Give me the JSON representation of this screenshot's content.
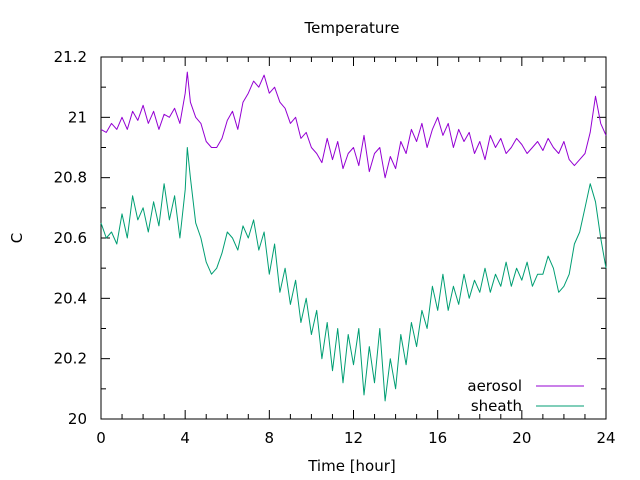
{
  "chart_data": {
    "type": "line",
    "title": "Temperature",
    "xlabel": "Time [hour]",
    "ylabel": "C",
    "xlim": [
      0,
      24
    ],
    "ylim": [
      20,
      21.2
    ],
    "xticks": [
      0,
      4,
      8,
      12,
      16,
      20,
      24
    ],
    "xtick_labels": [
      "0",
      "4",
      "8",
      "12",
      "16",
      "20",
      "24"
    ],
    "yticks": [
      20,
      20.2,
      20.4,
      20.6,
      20.8,
      21,
      21.2
    ],
    "ytick_labels": [
      "20",
      "20.2",
      "20.4",
      "20.6",
      "20.8",
      "21",
      "21.2"
    ],
    "grid": false,
    "legend_position": "bottom-right",
    "series": [
      {
        "name": "aerosol",
        "color": "#9400d3",
        "x": [
          0,
          0.25,
          0.5,
          0.75,
          1,
          1.25,
          1.5,
          1.75,
          2,
          2.25,
          2.5,
          2.75,
          3,
          3.25,
          3.5,
          3.75,
          4,
          4.1,
          4.25,
          4.5,
          4.75,
          5,
          5.25,
          5.5,
          5.75,
          6,
          6.25,
          6.5,
          6.75,
          7,
          7.25,
          7.5,
          7.75,
          8,
          8.25,
          8.5,
          8.75,
          9,
          9.25,
          9.5,
          9.75,
          10,
          10.25,
          10.5,
          10.75,
          11,
          11.25,
          11.5,
          11.75,
          12,
          12.25,
          12.5,
          12.75,
          13,
          13.25,
          13.5,
          13.75,
          14,
          14.25,
          14.5,
          14.75,
          15,
          15.25,
          15.5,
          15.75,
          16,
          16.25,
          16.5,
          16.75,
          17,
          17.25,
          17.5,
          17.75,
          18,
          18.25,
          18.5,
          18.75,
          19,
          19.25,
          19.5,
          19.75,
          20,
          20.25,
          20.5,
          20.75,
          21,
          21.25,
          21.5,
          21.75,
          22,
          22.25,
          22.5,
          22.75,
          23,
          23.25,
          23.5,
          23.75,
          24
        ],
        "y": [
          20.96,
          20.95,
          20.98,
          20.96,
          21.0,
          20.96,
          21.02,
          20.99,
          21.04,
          20.98,
          21.02,
          20.96,
          21.01,
          21.0,
          21.03,
          20.98,
          21.08,
          21.15,
          21.05,
          21.0,
          20.98,
          20.92,
          20.9,
          20.9,
          20.93,
          20.99,
          21.02,
          20.96,
          21.05,
          21.08,
          21.12,
          21.1,
          21.14,
          21.08,
          21.1,
          21.05,
          21.03,
          20.98,
          21.0,
          20.93,
          20.95,
          20.9,
          20.88,
          20.85,
          20.93,
          20.86,
          20.92,
          20.83,
          20.88,
          20.9,
          20.84,
          20.94,
          20.82,
          20.88,
          20.9,
          20.8,
          20.87,
          20.83,
          20.92,
          20.88,
          20.96,
          20.92,
          20.98,
          20.9,
          20.96,
          21.0,
          20.94,
          20.98,
          20.9,
          20.96,
          20.92,
          20.95,
          20.88,
          20.92,
          20.86,
          20.94,
          20.9,
          20.93,
          20.88,
          20.9,
          20.93,
          20.91,
          20.88,
          20.9,
          20.92,
          20.89,
          20.93,
          20.9,
          20.88,
          20.92,
          20.86,
          20.84,
          20.86,
          20.88,
          20.95,
          21.07,
          20.98,
          20.94
        ]
      },
      {
        "name": "sheath",
        "color": "#009e73",
        "x": [
          0,
          0.25,
          0.5,
          0.75,
          1,
          1.25,
          1.5,
          1.75,
          2,
          2.25,
          2.5,
          2.75,
          3,
          3.25,
          3.5,
          3.75,
          4,
          4.1,
          4.25,
          4.5,
          4.75,
          5,
          5.25,
          5.5,
          5.75,
          6,
          6.25,
          6.5,
          6.75,
          7,
          7.25,
          7.5,
          7.75,
          8,
          8.25,
          8.5,
          8.75,
          9,
          9.25,
          9.5,
          9.75,
          10,
          10.25,
          10.5,
          10.75,
          11,
          11.25,
          11.5,
          11.75,
          12,
          12.25,
          12.5,
          12.75,
          13,
          13.25,
          13.5,
          13.75,
          14,
          14.25,
          14.5,
          14.75,
          15,
          15.25,
          15.5,
          15.75,
          16,
          16.25,
          16.5,
          16.75,
          17,
          17.25,
          17.5,
          17.75,
          18,
          18.25,
          18.5,
          18.75,
          19,
          19.25,
          19.5,
          19.75,
          20,
          20.25,
          20.5,
          20.75,
          21,
          21.25,
          21.5,
          21.75,
          22,
          22.25,
          22.5,
          22.75,
          23,
          23.25,
          23.5,
          23.75,
          24
        ],
        "y": [
          20.65,
          20.6,
          20.62,
          20.58,
          20.68,
          20.6,
          20.74,
          20.66,
          20.7,
          20.62,
          20.72,
          20.64,
          20.78,
          20.66,
          20.74,
          20.6,
          20.76,
          20.9,
          20.8,
          20.65,
          20.6,
          20.52,
          20.48,
          20.5,
          20.55,
          20.62,
          20.6,
          20.56,
          20.64,
          20.6,
          20.66,
          20.56,
          20.62,
          20.48,
          20.58,
          20.42,
          20.5,
          20.38,
          20.46,
          20.32,
          20.4,
          20.28,
          20.36,
          20.2,
          20.32,
          20.16,
          20.3,
          20.12,
          20.28,
          20.18,
          20.3,
          20.08,
          20.24,
          20.12,
          20.3,
          20.06,
          20.2,
          20.1,
          20.28,
          20.18,
          20.32,
          20.24,
          20.36,
          20.3,
          20.44,
          20.36,
          20.48,
          20.36,
          20.44,
          20.38,
          20.48,
          20.4,
          20.46,
          20.42,
          20.5,
          20.42,
          20.48,
          20.44,
          20.52,
          20.44,
          20.5,
          20.46,
          20.52,
          20.44,
          20.48,
          20.48,
          20.54,
          20.5,
          20.42,
          20.44,
          20.48,
          20.58,
          20.62,
          20.7,
          20.78,
          20.72,
          20.6,
          20.5
        ]
      }
    ]
  }
}
